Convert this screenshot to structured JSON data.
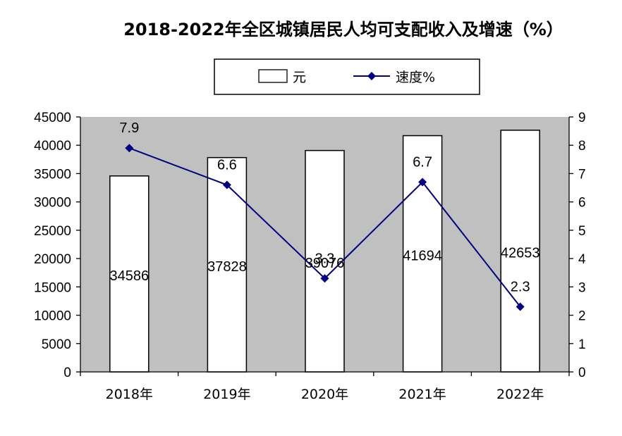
{
  "chart_data": {
    "type": "bar",
    "title": "2018-2022年全区城镇居民人均可支配收入及增速（%）",
    "categories": [
      "2018年",
      "2019年",
      "2020年",
      "2021年",
      "2022年"
    ],
    "series": [
      {
        "name": "元",
        "type": "bar",
        "axis": "left",
        "values": [
          34586,
          37828,
          39076,
          41694,
          42653
        ]
      },
      {
        "name": "速度%",
        "type": "line",
        "axis": "right",
        "values": [
          7.9,
          6.6,
          3.3,
          6.7,
          2.3
        ]
      }
    ],
    "ylim": [
      0,
      45000
    ],
    "y_ticks": [
      "0",
      "5000",
      "10000",
      "15000",
      "20000",
      "25000",
      "30000",
      "35000",
      "40000",
      "45000"
    ],
    "y2lim": [
      0,
      9
    ],
    "y2_ticks": [
      "0",
      "1",
      "2",
      "3",
      "4",
      "5",
      "6",
      "7",
      "8",
      "9"
    ],
    "xlabel": "",
    "ylabel": "",
    "grid": false,
    "legend": "top",
    "colors": {
      "plot_bg": "#c0c0c0",
      "bar_fill": "#ffffff",
      "line": "#000080",
      "axis": "#000000"
    }
  }
}
